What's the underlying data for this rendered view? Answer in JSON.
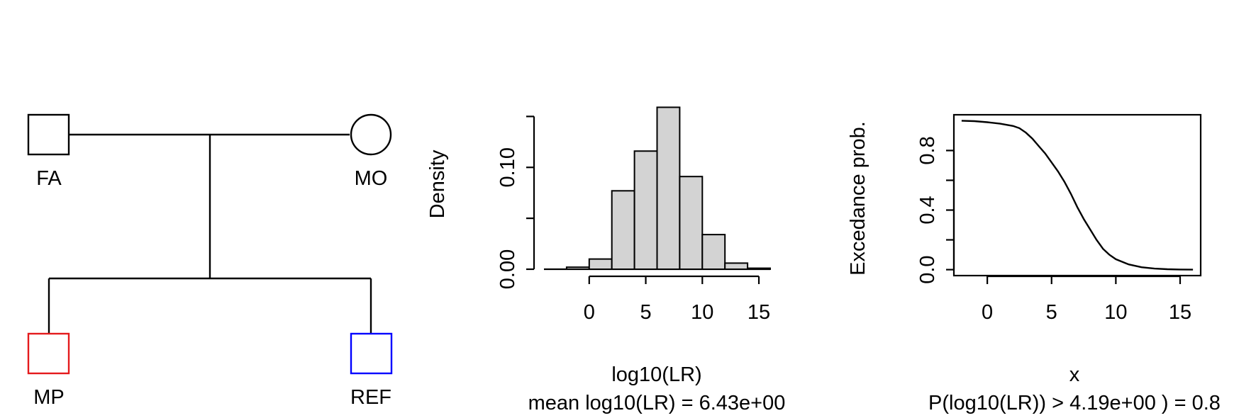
{
  "pedigree": {
    "individuals": [
      {
        "id": "FA",
        "sex": "male",
        "color": "#000000"
      },
      {
        "id": "MO",
        "sex": "female",
        "color": "#000000"
      },
      {
        "id": "MP",
        "sex": "male",
        "color": "#e41a1c"
      },
      {
        "id": "REF",
        "sex": "male",
        "color": "#0000ff"
      }
    ]
  },
  "chart_data": [
    {
      "type": "bar",
      "subtype": "histogram",
      "xlabel": "log10(LR)",
      "subtitle": "mean log10(LR) =  6.43e+00",
      "ylabel": "Density",
      "bin_edges": [
        -2,
        0,
        2,
        4,
        6,
        8,
        10,
        12,
        14,
        16
      ],
      "values": [
        0.002,
        0.01,
        0.077,
        0.116,
        0.159,
        0.091,
        0.034,
        0.006,
        0.001
      ],
      "xlim": [
        -4,
        16
      ],
      "ylim": [
        0,
        0.16
      ],
      "xticks": [
        0,
        5,
        10,
        15
      ],
      "xtick_labels": [
        "0",
        "5",
        "10",
        "15"
      ],
      "yticks": [
        0,
        0.05,
        0.1,
        0.15
      ],
      "ytick_labels": [
        "0.00",
        "",
        "0.10",
        ""
      ],
      "bar_color": "#d3d3d3",
      "grid": false
    },
    {
      "type": "line",
      "xlabel": "x",
      "subtitle": "P(log10(LR)) >  4.19e+00 ) = 0.8",
      "ylabel": "Excedance prob.",
      "x": [
        -2,
        -1,
        0,
        1,
        2,
        2.5,
        3,
        3.5,
        4,
        4.5,
        5,
        5.5,
        6,
        6.5,
        7,
        7.5,
        8,
        8.5,
        9,
        9.5,
        10,
        11,
        12,
        13,
        14,
        15,
        16
      ],
      "y": [
        1.0,
        0.997,
        0.99,
        0.98,
        0.965,
        0.95,
        0.92,
        0.88,
        0.83,
        0.78,
        0.72,
        0.66,
        0.59,
        0.51,
        0.42,
        0.34,
        0.27,
        0.2,
        0.14,
        0.1,
        0.07,
        0.035,
        0.016,
        0.007,
        0.003,
        0.001,
        0.0
      ],
      "xlim": [
        -2.6,
        16.6
      ],
      "ylim": [
        -0.04,
        1.04
      ],
      "xticks": [
        0,
        5,
        10,
        15
      ],
      "xtick_labels": [
        "0",
        "5",
        "10",
        "15"
      ],
      "yticks": [
        0,
        0.2,
        0.4,
        0.6,
        0.8
      ],
      "ytick_labels": [
        "0.0",
        "",
        "0.4",
        "",
        "0.8"
      ],
      "grid": false
    }
  ]
}
